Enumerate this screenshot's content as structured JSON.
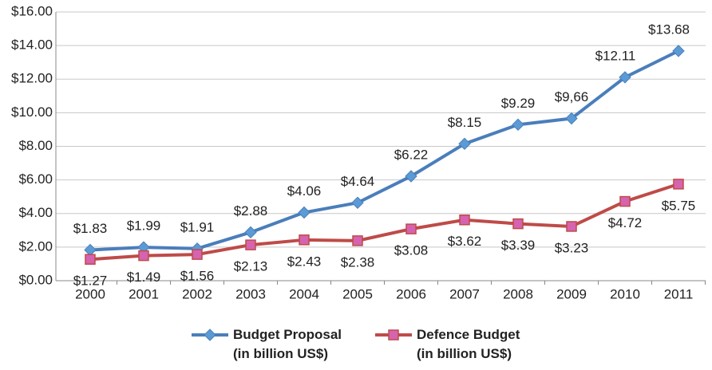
{
  "chart_data": {
    "type": "line",
    "categories": [
      "2000",
      "2001",
      "2002",
      "2003",
      "2004",
      "2005",
      "2006",
      "2007",
      "2008",
      "2009",
      "2010",
      "2011"
    ],
    "series": [
      {
        "name": "Budget Proposal\n(in billion US$)",
        "color": "#4a7ebb",
        "marker_color": "#5b9bd5",
        "marker": "diamond",
        "values": [
          1.83,
          1.99,
          1.91,
          2.88,
          4.06,
          4.64,
          6.22,
          8.15,
          9.29,
          9.66,
          12.11,
          13.68
        ],
        "value_labels": [
          "$1.83",
          "$1.99",
          "$1.91",
          "$2.88",
          "$4.06",
          "$4.64",
          "$6.22",
          "$8.15",
          "$9.29",
          "$9,66",
          "$12.11",
          "$13.68"
        ]
      },
      {
        "name": "Defence Budget\n(in billion US$)",
        "color": "#be4b48",
        "marker_color": "#d663b0",
        "marker": "square",
        "values": [
          1.27,
          1.49,
          1.56,
          2.13,
          2.43,
          2.38,
          3.08,
          3.62,
          3.39,
          3.23,
          4.72,
          5.75
        ],
        "value_labels": [
          "$1.27",
          "$1.49",
          "$1.56",
          "$2.13",
          "$2.43",
          "$2.38",
          "$3.08",
          "$3.62",
          "$3.39",
          "$3.23",
          "$4.72",
          "$5.75"
        ]
      }
    ],
    "ylim": [
      0,
      16
    ],
    "yticks": [
      {
        "value": 0,
        "label": "$0.00"
      },
      {
        "value": 2,
        "label": "$2.00"
      },
      {
        "value": 4,
        "label": "$4.00"
      },
      {
        "value": 6,
        "label": "$6.00"
      },
      {
        "value": 8,
        "label": "$8.00"
      },
      {
        "value": 10,
        "label": "$10.00"
      },
      {
        "value": 12,
        "label": "$12.00"
      },
      {
        "value": 14,
        "label": "$14.00"
      },
      {
        "value": 16,
        "label": "$16.00"
      }
    ],
    "grid": true,
    "legend": "bottom"
  }
}
